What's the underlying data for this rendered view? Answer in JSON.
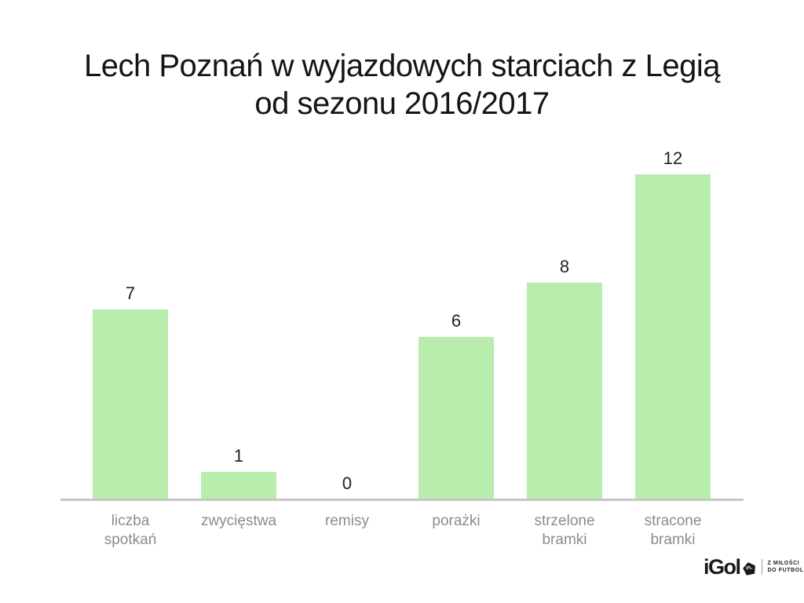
{
  "title": {
    "line1": "Lech Poznań w wyjazdowych starciach z Legią",
    "line2": "od sezonu 2016/2017"
  },
  "chart_data": {
    "type": "bar",
    "title": "Lech Poznań w wyjazdowych starciach z Legią od sezonu 2016/2017",
    "categories": [
      "liczba spotkań",
      "zwycięstwa",
      "remisy",
      "porażki",
      "strzelone bramki",
      "stracone bramki"
    ],
    "values": [
      7,
      1,
      0,
      6,
      8,
      12
    ],
    "xlabel": "",
    "ylabel": "",
    "ylim": [
      0,
      13
    ],
    "grid": false,
    "legend": false,
    "data_labels_shown": true,
    "bar_color": "#b9edae",
    "axis_line_color": "#c6c6c6",
    "value_label_color": "#212121",
    "category_label_color": "#8c8c8c"
  },
  "logo": {
    "brand": "iGol",
    "badge_text": "PL",
    "tagline_line1": "Z MIŁOŚCI",
    "tagline_line2": "DO FUTBOLU"
  }
}
